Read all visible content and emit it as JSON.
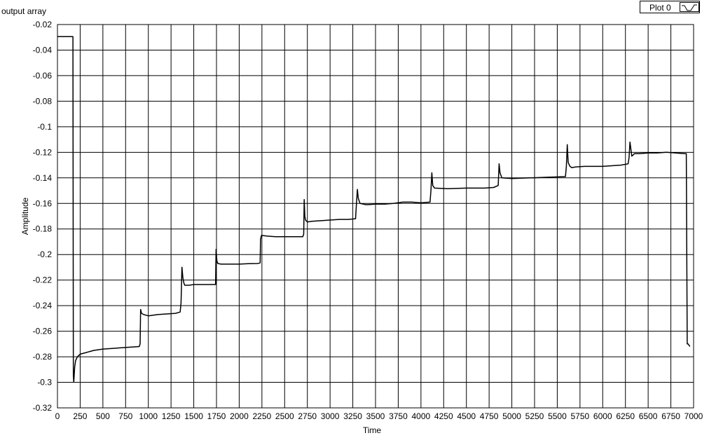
{
  "chart_data": {
    "type": "line",
    "title": "output array",
    "xlabel": "Time",
    "ylabel": "Amplitude",
    "xlim": [
      0,
      7000
    ],
    "ylim": [
      -0.32,
      -0.02
    ],
    "x_ticks": [
      0,
      250,
      500,
      750,
      1000,
      1250,
      1500,
      1750,
      2000,
      2250,
      2500,
      2750,
      3000,
      3250,
      3500,
      3750,
      4000,
      4250,
      4500,
      4750,
      5000,
      5250,
      5500,
      5750,
      6000,
      6250,
      6500,
      6750,
      7000
    ],
    "y_ticks": [
      -0.02,
      -0.04,
      -0.06,
      -0.08,
      -0.1,
      -0.12,
      -0.14,
      -0.16,
      -0.18,
      -0.2,
      -0.22,
      -0.24,
      -0.26,
      -0.28,
      -0.3,
      -0.32
    ],
    "y_tick_labels": [
      "-0.02",
      "-0.04",
      "-0.06",
      "-0.08",
      "-0.1",
      "-0.12",
      "-0.14",
      "-0.16",
      "-0.18",
      "-0.2",
      "-0.22",
      "-0.24",
      "-0.26",
      "-0.28",
      "-0.3",
      "-0.32"
    ],
    "grid": true,
    "legend_position": "top-right",
    "series": [
      {
        "name": "Plot 0",
        "color": "#000000",
        "x": [
          0,
          170,
          175,
          180,
          190,
          200,
          220,
          250,
          300,
          400,
          500,
          600,
          700,
          800,
          900,
          910,
          915,
          925,
          950,
          1000,
          1100,
          1200,
          1300,
          1350,
          1360,
          1370,
          1380,
          1390,
          1400,
          1450,
          1500,
          1550,
          1600,
          1650,
          1700,
          1740,
          1745,
          1755,
          1765,
          1800,
          1900,
          2000,
          2100,
          2200,
          2230,
          2235,
          2245,
          2300,
          2400,
          2500,
          2600,
          2700,
          2710,
          2715,
          2722,
          2730,
          2750,
          2800,
          2900,
          3000,
          3100,
          3200,
          3280,
          3290,
          3300,
          3310,
          3330,
          3400,
          3500,
          3600,
          3700,
          3800,
          3900,
          4000,
          4100,
          4110,
          4120,
          4130,
          4150,
          4300,
          4500,
          4700,
          4800,
          4850,
          4860,
          4870,
          4890,
          5000,
          5200,
          5400,
          5590,
          5600,
          5610,
          5620,
          5640,
          5660,
          5700,
          5800,
          6000,
          6200,
          6280,
          6290,
          6300,
          6320,
          6350,
          6400,
          6500,
          6600,
          6700,
          6800,
          6900,
          6920,
          6930,
          6940,
          6960
        ],
        "y": [
          -0.0295,
          -0.0295,
          -0.295,
          -0.3,
          -0.288,
          -0.283,
          -0.28,
          -0.278,
          -0.277,
          -0.275,
          -0.274,
          -0.2735,
          -0.273,
          -0.2725,
          -0.272,
          -0.27,
          -0.243,
          -0.246,
          -0.247,
          -0.248,
          -0.247,
          -0.2465,
          -0.246,
          -0.245,
          -0.238,
          -0.21,
          -0.218,
          -0.222,
          -0.224,
          -0.224,
          -0.2235,
          -0.2235,
          -0.2235,
          -0.2235,
          -0.2235,
          -0.2235,
          -0.196,
          -0.205,
          -0.207,
          -0.2075,
          -0.2075,
          -0.2075,
          -0.2072,
          -0.207,
          -0.2065,
          -0.188,
          -0.185,
          -0.1855,
          -0.186,
          -0.186,
          -0.186,
          -0.186,
          -0.184,
          -0.157,
          -0.17,
          -0.173,
          -0.1745,
          -0.174,
          -0.1735,
          -0.173,
          -0.1725,
          -0.1725,
          -0.172,
          -0.16,
          -0.149,
          -0.156,
          -0.16,
          -0.161,
          -0.1605,
          -0.1605,
          -0.16,
          -0.159,
          -0.159,
          -0.1595,
          -0.159,
          -0.15,
          -0.136,
          -0.146,
          -0.148,
          -0.1485,
          -0.148,
          -0.148,
          -0.1475,
          -0.146,
          -0.129,
          -0.136,
          -0.14,
          -0.1405,
          -0.14,
          -0.1395,
          -0.139,
          -0.131,
          -0.114,
          -0.128,
          -0.131,
          -0.132,
          -0.1315,
          -0.131,
          -0.131,
          -0.13,
          -0.129,
          -0.124,
          -0.112,
          -0.123,
          -0.121,
          -0.121,
          -0.1205,
          -0.1205,
          -0.12,
          -0.1205,
          -0.121,
          -0.121,
          -0.27,
          -0.27,
          -0.272
        ]
      }
    ]
  }
}
